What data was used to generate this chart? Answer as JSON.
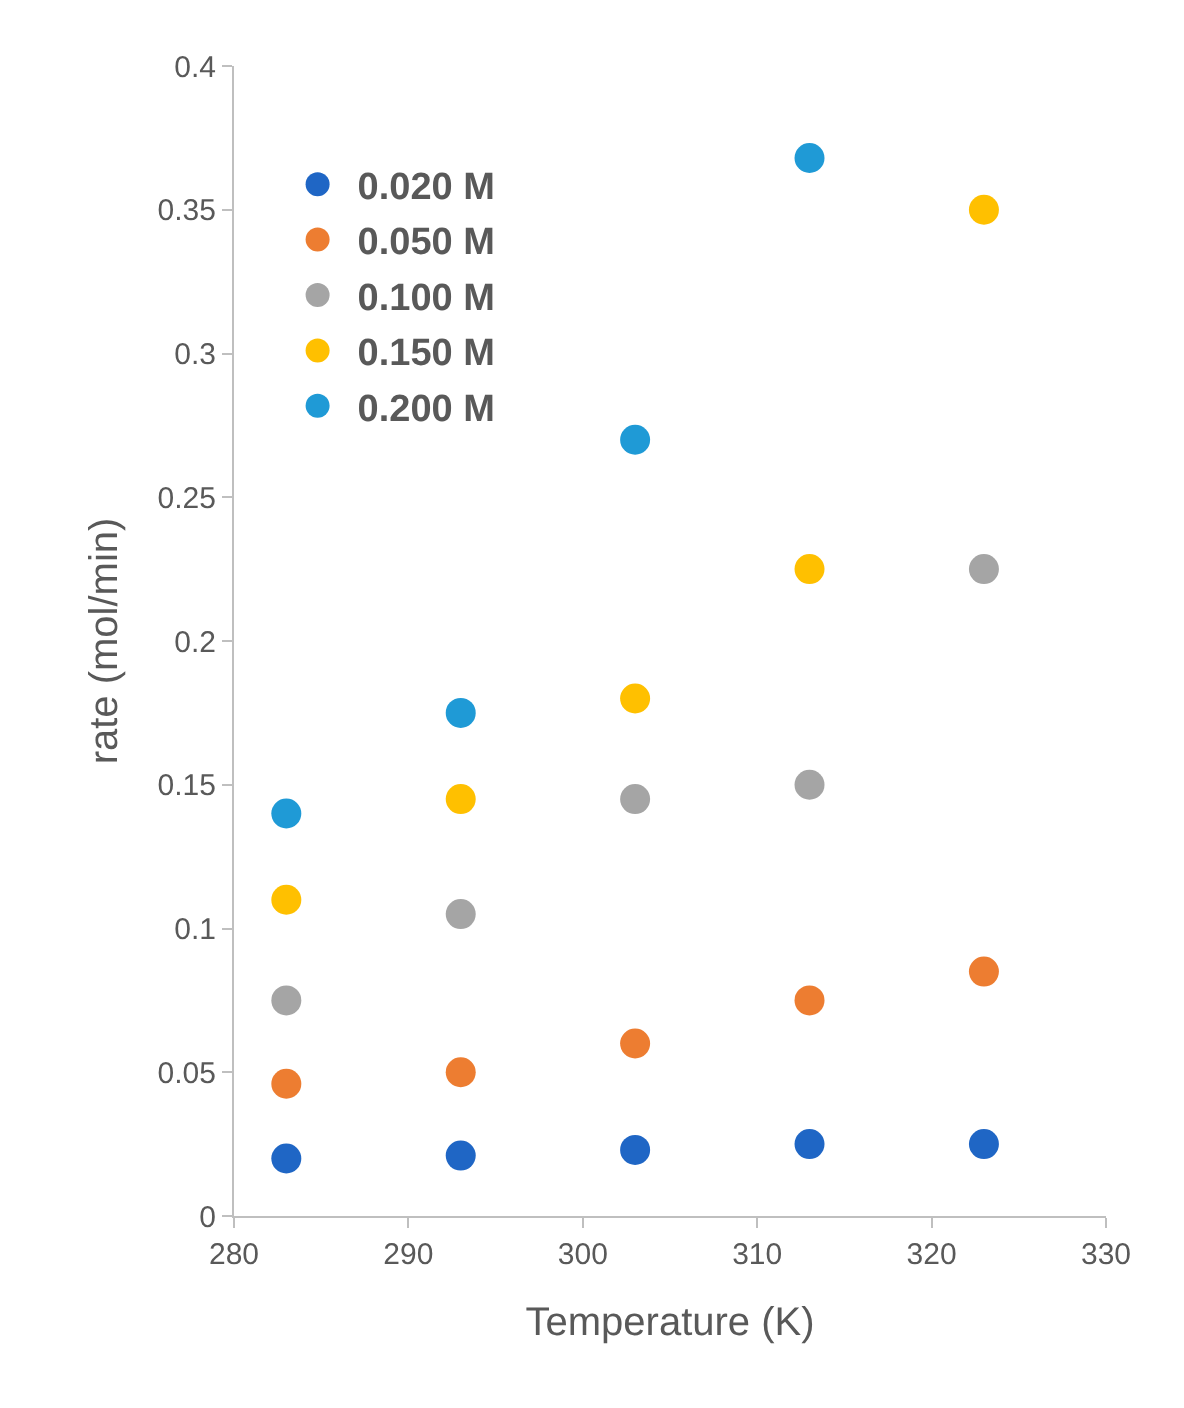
{
  "chart_data": {
    "type": "scatter",
    "xlabel": "Temperature (K)",
    "ylabel": "rate (mol/min)",
    "x": [
      283,
      293,
      303,
      313,
      323
    ],
    "series": [
      {
        "name": "0.020 M",
        "color": "#1f66c5",
        "values": [
          0.02,
          0.021,
          0.023,
          0.025,
          0.025
        ]
      },
      {
        "name": "0.050 M",
        "color": "#ed7d31",
        "values": [
          0.046,
          0.05,
          0.06,
          0.075,
          0.085
        ]
      },
      {
        "name": "0.100 M",
        "color": "#a5a5a5",
        "values": [
          0.075,
          0.105,
          0.145,
          0.15,
          0.225
        ]
      },
      {
        "name": "0.150 M",
        "color": "#ffc000",
        "values": [
          0.11,
          0.145,
          0.18,
          0.225,
          0.35
        ]
      },
      {
        "name": "0.200 M",
        "color": "#1f9ad6",
        "values": [
          0.14,
          0.175,
          0.27,
          0.368,
          null
        ]
      }
    ],
    "xlim": [
      280,
      330
    ],
    "xticks": [
      280,
      290,
      300,
      310,
      320,
      330
    ],
    "ylim": [
      0,
      0.4
    ],
    "yticks": [
      0,
      0.05,
      0.1,
      0.15,
      0.2,
      0.25,
      0.3,
      0.35,
      0.4
    ],
    "grid": false,
    "legend": "top left",
    "marker": "circle"
  }
}
